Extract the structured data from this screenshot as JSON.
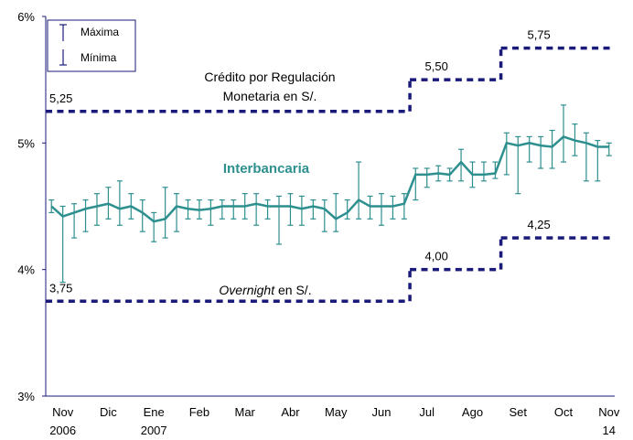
{
  "chart_data": {
    "type": "line",
    "categories": [
      null,
      "Nov\n2006",
      null,
      null,
      null,
      "Dic",
      null,
      null,
      null,
      "Ene\n2007",
      null,
      null,
      null,
      "Feb",
      null,
      null,
      null,
      "Mar",
      null,
      null,
      null,
      "Abr",
      null,
      null,
      null,
      "May",
      null,
      null,
      null,
      "Jun",
      null,
      null,
      null,
      "Jul",
      null,
      null,
      null,
      "Ago",
      null,
      null,
      null,
      "Set",
      null,
      null,
      null,
      "Oct",
      null,
      null,
      null,
      "Nov\n14"
    ],
    "ylim": [
      3,
      6
    ],
    "yticks": [
      {
        "value": 3,
        "label": "3%"
      },
      {
        "value": 4,
        "label": "4%"
      },
      {
        "value": 5,
        "label": "5%"
      },
      {
        "value": 6,
        "label": "6%"
      }
    ],
    "error_labels": {
      "max": "Máxima",
      "min": "Mínima"
    },
    "series": [
      {
        "name": "Crédito por Regulación\nMonetaria en S/.",
        "color": "#1a1a7a",
        "style": "dashed",
        "values": [
          5.25,
          5.25,
          5.25,
          5.25,
          5.25,
          5.25,
          5.25,
          5.25,
          5.25,
          5.25,
          5.25,
          5.25,
          5.25,
          5.25,
          5.25,
          5.25,
          5.25,
          5.25,
          5.25,
          5.25,
          5.25,
          5.25,
          5.25,
          5.25,
          5.25,
          5.25,
          5.25,
          5.25,
          5.25,
          5.25,
          5.25,
          5.25,
          5.5,
          5.5,
          5.5,
          5.5,
          5.5,
          5.5,
          5.5,
          5.5,
          5.75,
          5.75,
          5.75,
          5.75,
          5.75,
          5.75,
          5.75,
          5.75,
          5.75,
          5.75
        ],
        "value_labels": [
          "5,25",
          null,
          null,
          null,
          null,
          null,
          null,
          null,
          null,
          null,
          null,
          null,
          null,
          null,
          null,
          null,
          null,
          null,
          null,
          null,
          null,
          null,
          null,
          null,
          null,
          null,
          null,
          null,
          null,
          null,
          null,
          null,
          null,
          "5,50",
          null,
          null,
          null,
          null,
          null,
          null,
          null,
          null,
          "5,75",
          null,
          null,
          null,
          null,
          null,
          null,
          null
        ]
      },
      {
        "name": "Overnight en S/.",
        "color": "#1a1a7a",
        "style": "dashed",
        "values": [
          3.75,
          3.75,
          3.75,
          3.75,
          3.75,
          3.75,
          3.75,
          3.75,
          3.75,
          3.75,
          3.75,
          3.75,
          3.75,
          3.75,
          3.75,
          3.75,
          3.75,
          3.75,
          3.75,
          3.75,
          3.75,
          3.75,
          3.75,
          3.75,
          3.75,
          3.75,
          3.75,
          3.75,
          3.75,
          3.75,
          3.75,
          3.75,
          4.0,
          4.0,
          4.0,
          4.0,
          4.0,
          4.0,
          4.0,
          4.0,
          4.25,
          4.25,
          4.25,
          4.25,
          4.25,
          4.25,
          4.25,
          4.25,
          4.25,
          4.25
        ],
        "value_labels": [
          "3,75",
          null,
          null,
          null,
          null,
          null,
          null,
          null,
          null,
          null,
          null,
          null,
          null,
          null,
          null,
          null,
          null,
          null,
          null,
          null,
          null,
          null,
          null,
          null,
          null,
          null,
          null,
          null,
          null,
          null,
          null,
          null,
          null,
          "4,00",
          null,
          null,
          null,
          null,
          null,
          null,
          null,
          null,
          "4,25",
          null,
          null,
          null,
          null,
          null,
          null,
          null
        ]
      },
      {
        "name": "Interbancaria",
        "color": "#2e8f8f",
        "style": "solid",
        "values": [
          4.5,
          4.42,
          4.45,
          4.48,
          4.5,
          4.52,
          4.48,
          4.5,
          4.45,
          4.38,
          4.4,
          4.5,
          4.48,
          4.47,
          4.48,
          4.5,
          4.5,
          4.5,
          4.52,
          4.5,
          4.5,
          4.5,
          4.48,
          4.5,
          4.48,
          4.4,
          4.45,
          4.55,
          4.5,
          4.5,
          4.5,
          4.52,
          4.75,
          4.75,
          4.76,
          4.75,
          4.85,
          4.75,
          4.75,
          4.76,
          5.0,
          4.98,
          5.0,
          4.98,
          4.97,
          5.05,
          5.02,
          5.0,
          4.97,
          4.97
        ],
        "max": [
          4.55,
          4.5,
          4.52,
          4.55,
          4.6,
          4.65,
          4.7,
          4.6,
          4.55,
          4.45,
          4.65,
          4.6,
          4.55,
          4.55,
          4.55,
          4.55,
          4.55,
          4.6,
          4.6,
          4.55,
          4.58,
          4.6,
          4.58,
          4.55,
          4.55,
          4.6,
          4.55,
          4.85,
          4.58,
          4.6,
          4.58,
          4.6,
          4.8,
          4.8,
          4.82,
          4.8,
          4.95,
          4.85,
          4.85,
          4.85,
          5.08,
          5.05,
          5.05,
          5.05,
          5.1,
          5.3,
          5.15,
          5.08,
          5.02,
          5.0
        ],
        "min": [
          4.45,
          3.9,
          4.25,
          4.3,
          4.35,
          4.4,
          4.35,
          4.4,
          4.3,
          4.22,
          4.25,
          4.3,
          4.4,
          4.4,
          4.35,
          4.4,
          4.4,
          4.4,
          4.35,
          4.4,
          4.2,
          4.35,
          4.35,
          4.4,
          4.3,
          4.3,
          4.4,
          4.4,
          4.4,
          4.35,
          4.4,
          4.4,
          4.55,
          4.65,
          4.7,
          4.7,
          4.7,
          4.65,
          4.7,
          4.72,
          4.75,
          4.6,
          4.85,
          4.8,
          4.8,
          4.85,
          4.9,
          4.7,
          4.7,
          4.9
        ]
      }
    ]
  }
}
